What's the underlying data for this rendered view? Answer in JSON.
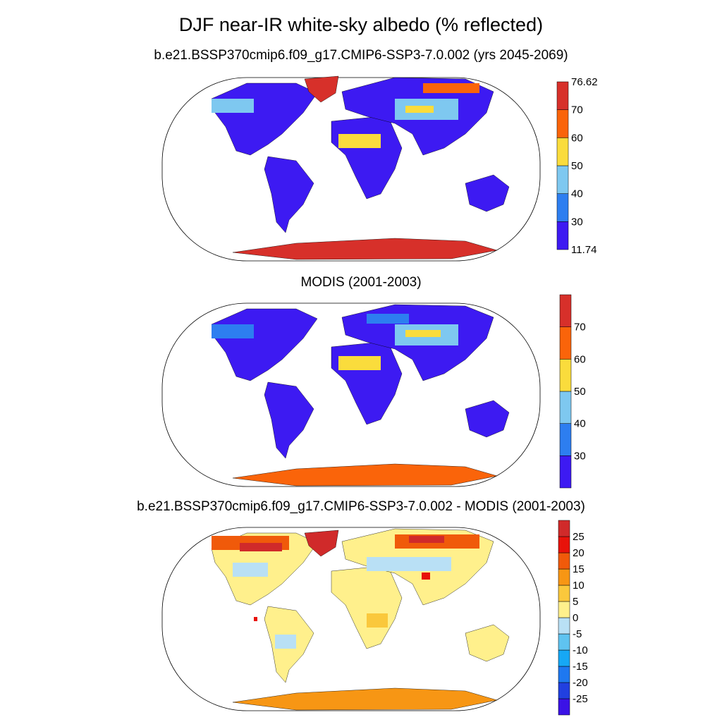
{
  "page": {
    "title": "DJF near-IR white-sky albedo (% reflected)"
  },
  "panels": [
    {
      "title": "b.e21.BSSP370cmip6.f09_g17.CMIP6-SSP3-7.0.002 (yrs 2045-2069)",
      "colorbar": {
        "colors": [
          "#3d1af2",
          "#2d7ef0",
          "#7ec8f0",
          "#fadc3c",
          "#fa640a",
          "#d7302a"
        ],
        "labels": [
          "11.74",
          "30",
          "40",
          "50",
          "60",
          "70",
          "76.62"
        ]
      }
    },
    {
      "title": "MODIS (2001-2003)",
      "colorbar": {
        "colors": [
          "#3d1af2",
          "#2d7ef0",
          "#7ec8f0",
          "#fadc3c",
          "#fa640a",
          "#d7302a"
        ],
        "labels": [
          "",
          "30",
          "40",
          "50",
          "60",
          "70",
          ""
        ]
      }
    },
    {
      "title": "b.e21.BSSP370cmip6.f09_g17.CMIP6-SSP3-7.0.002 - MODIS (2001-2003)",
      "colorbar": {
        "colors": [
          "#3b12e6",
          "#2140e0",
          "#1e78f0",
          "#16a8f5",
          "#5fc3f0",
          "#b9e0f5",
          "#fff08c",
          "#fac83c",
          "#f79614",
          "#f05a0a",
          "#e8120a",
          "#d02a2a"
        ],
        "labels": [
          "",
          "-25",
          "-20",
          "-15",
          "-10",
          "-5",
          "0",
          "5",
          "10",
          "15",
          "20",
          "25",
          ""
        ]
      }
    }
  ],
  "legend": {
    "land_fill_color": "#3d1af2",
    "outline_color": "#000000"
  }
}
